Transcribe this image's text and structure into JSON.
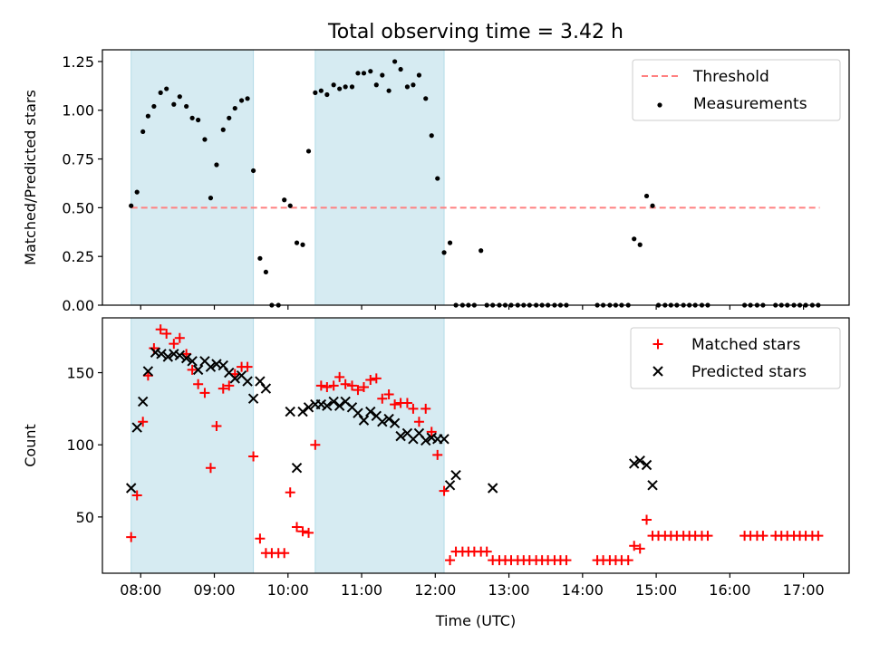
{
  "figure": {
    "title": "Total observing time = 3.42 h"
  },
  "chart_data": [
    {
      "type": "scatter",
      "panel": "top",
      "title": "Total observing time = 3.42 h",
      "xlabel": "",
      "ylabel": "Matched/Predicted stars",
      "xlim": [
        7.48,
        17.62
      ],
      "ylim": [
        0,
        1.31
      ],
      "x_ticks": [
        8,
        9,
        10,
        11,
        12,
        13,
        14,
        15,
        16,
        17
      ],
      "x_tick_labels": [],
      "y_ticks": [
        0.0,
        0.25,
        0.5,
        0.75,
        1.0,
        1.25
      ],
      "y_tick_labels": [
        "0.00",
        "0.25",
        "0.50",
        "0.75",
        "1.00",
        "1.25"
      ],
      "grid": false,
      "legend_position": "top-right",
      "shaded_spans": [
        [
          7.87,
          9.53
        ],
        [
          10.37,
          12.12
        ]
      ],
      "shade_color": "#add8e6",
      "series": [
        {
          "name": "Threshold",
          "style": "dashed-line",
          "color": "#ff8080",
          "x": [
            7.87,
            17.22
          ],
          "y": [
            0.5,
            0.5
          ]
        },
        {
          "name": "Measurements",
          "style": "dot",
          "color": "#000000",
          "x": [
            7.87,
            7.95,
            8.03,
            8.1,
            8.18,
            8.27,
            8.35,
            8.45,
            8.53,
            8.62,
            8.7,
            8.78,
            8.87,
            8.95,
            9.03,
            9.12,
            9.2,
            9.28,
            9.37,
            9.45,
            9.53,
            9.62,
            9.7,
            9.78,
            9.87,
            9.95,
            10.03,
            10.12,
            10.2,
            10.28,
            10.37,
            10.45,
            10.53,
            10.62,
            10.7,
            10.78,
            10.87,
            10.95,
            11.03,
            11.12,
            11.2,
            11.28,
            11.37,
            11.45,
            11.53,
            11.62,
            11.7,
            11.78,
            11.87,
            11.95,
            12.03,
            12.12,
            12.2,
            12.28,
            12.37,
            12.45,
            12.53,
            12.62,
            12.7,
            12.78,
            12.87,
            12.95,
            13.03,
            13.12,
            13.2,
            13.28,
            13.37,
            13.45,
            13.53,
            13.62,
            13.7,
            13.78,
            14.2,
            14.28,
            14.37,
            14.45,
            14.53,
            14.62,
            14.7,
            14.78,
            14.87,
            14.95,
            15.03,
            15.12,
            15.2,
            15.28,
            15.37,
            15.45,
            15.53,
            15.62,
            15.7,
            16.2,
            16.28,
            16.37,
            16.45,
            16.62,
            16.7,
            16.78,
            16.87,
            16.95,
            17.03,
            17.12,
            17.2
          ],
          "y": [
            0.51,
            0.58,
            0.89,
            0.97,
            1.02,
            1.09,
            1.11,
            1.03,
            1.07,
            1.02,
            0.96,
            0.95,
            0.85,
            0.55,
            0.72,
            0.9,
            0.96,
            1.01,
            1.05,
            1.06,
            0.69,
            0.24,
            0.17,
            0.0,
            0.0,
            0.54,
            0.51,
            0.32,
            0.31,
            0.79,
            1.09,
            1.1,
            1.08,
            1.13,
            1.11,
            1.12,
            1.12,
            1.19,
            1.19,
            1.2,
            1.13,
            1.18,
            1.1,
            1.25,
            1.21,
            1.12,
            1.13,
            1.18,
            1.06,
            0.87,
            0.65,
            0.27,
            0.32,
            0.0,
            0.0,
            0.0,
            0.0,
            0.28,
            0.0,
            0.0,
            0.0,
            0.0,
            0.0,
            0.0,
            0.0,
            0.0,
            0.0,
            0.0,
            0.0,
            0.0,
            0.0,
            0.0,
            0.0,
            0.0,
            0.0,
            0.0,
            0.0,
            0.0,
            0.34,
            0.31,
            0.56,
            0.51,
            0.0,
            0.0,
            0.0,
            0.0,
            0.0,
            0.0,
            0.0,
            0.0,
            0.0,
            0.0,
            0.0,
            0.0,
            0.0,
            0.0,
            0.0,
            0.0,
            0.0,
            0.0,
            0.0,
            0.0,
            0.0
          ]
        }
      ]
    },
    {
      "type": "scatter",
      "panel": "bottom",
      "xlabel": "Time (UTC)",
      "ylabel": "Count",
      "xlim": [
        7.48,
        17.62
      ],
      "ylim": [
        11,
        188
      ],
      "x_ticks": [
        8,
        9,
        10,
        11,
        12,
        13,
        14,
        15,
        16,
        17
      ],
      "x_tick_labels": [
        "08:00",
        "09:00",
        "10:00",
        "11:00",
        "12:00",
        "13:00",
        "14:00",
        "15:00",
        "16:00",
        "17:00"
      ],
      "y_ticks": [
        50,
        100,
        150
      ],
      "y_tick_labels": [
        "50",
        "100",
        "150"
      ],
      "grid": false,
      "legend_position": "top-right",
      "shaded_spans": [
        [
          7.87,
          9.53
        ],
        [
          10.37,
          12.12
        ]
      ],
      "shade_color": "#add8e6",
      "series": [
        {
          "name": "Matched stars",
          "style": "plus",
          "color": "#ff0000",
          "x": [
            7.87,
            7.95,
            8.03,
            8.1,
            8.18,
            8.27,
            8.35,
            8.45,
            8.53,
            8.62,
            8.7,
            8.78,
            8.87,
            8.95,
            9.03,
            9.12,
            9.2,
            9.28,
            9.37,
            9.45,
            9.53,
            9.62,
            9.7,
            9.78,
            9.87,
            9.95,
            10.03,
            10.12,
            10.2,
            10.28,
            10.37,
            10.45,
            10.53,
            10.62,
            10.7,
            10.78,
            10.87,
            10.95,
            11.03,
            11.12,
            11.2,
            11.28,
            11.37,
            11.45,
            11.53,
            11.62,
            11.7,
            11.78,
            11.87,
            11.95,
            12.03,
            12.12,
            12.2,
            12.28,
            12.37,
            12.45,
            12.53,
            12.62,
            12.7,
            12.78,
            12.87,
            12.95,
            13.03,
            13.12,
            13.2,
            13.28,
            13.37,
            13.45,
            13.53,
            13.62,
            13.7,
            13.78,
            14.2,
            14.28,
            14.37,
            14.45,
            14.53,
            14.62,
            14.7,
            14.78,
            14.87,
            14.95,
            15.03,
            15.12,
            15.2,
            15.28,
            15.37,
            15.45,
            15.53,
            15.62,
            15.7,
            16.2,
            16.28,
            16.37,
            16.45,
            16.62,
            16.7,
            16.78,
            16.87,
            16.95,
            17.03,
            17.12,
            17.2
          ],
          "y": [
            36,
            65,
            116,
            148,
            167,
            180,
            177,
            170,
            174,
            163,
            152,
            142,
            136,
            84,
            113,
            139,
            141,
            149,
            154,
            154,
            92,
            35,
            25,
            25,
            25,
            25,
            67,
            43,
            40,
            39,
            100,
            141,
            140,
            141,
            147,
            142,
            141,
            138,
            140,
            145,
            146,
            132,
            135,
            128,
            129,
            129,
            125,
            116,
            125,
            109,
            93,
            68,
            20,
            26,
            26,
            26,
            26,
            26,
            26,
            20,
            20,
            20,
            20,
            20,
            20,
            20,
            20,
            20,
            20,
            20,
            20,
            20,
            20,
            20,
            20,
            20,
            20,
            20,
            30,
            28,
            48,
            37,
            37,
            37,
            37,
            37,
            37,
            37,
            37,
            37,
            37,
            37,
            37,
            37,
            37,
            37,
            37,
            37,
            37,
            37,
            37,
            37,
            37
          ]
        },
        {
          "name": "Predicted stars",
          "style": "x",
          "color": "#000000",
          "x": [
            7.87,
            7.95,
            8.03,
            8.1,
            8.2,
            8.28,
            8.37,
            8.45,
            8.53,
            8.62,
            8.7,
            8.78,
            8.87,
            8.95,
            9.03,
            9.12,
            9.2,
            9.28,
            9.37,
            9.45,
            9.53,
            9.62,
            9.7,
            10.03,
            10.12,
            10.2,
            10.28,
            10.37,
            10.45,
            10.53,
            10.62,
            10.7,
            10.78,
            10.87,
            10.95,
            11.03,
            11.12,
            11.2,
            11.28,
            11.37,
            11.45,
            11.53,
            11.62,
            11.7,
            11.78,
            11.87,
            11.95,
            12.03,
            12.12,
            12.2,
            12.28,
            12.78,
            14.7,
            14.78,
            14.87,
            14.95
          ],
          "y": [
            70,
            112,
            130,
            151,
            164,
            163,
            161,
            163,
            162,
            160,
            158,
            152,
            158,
            154,
            156,
            155,
            150,
            146,
            148,
            144,
            132,
            144,
            139,
            123,
            84,
            123,
            126,
            128,
            128,
            127,
            130,
            127,
            130,
            126,
            122,
            117,
            123,
            120,
            116,
            118,
            115,
            106,
            108,
            104,
            108,
            103,
            105,
            104,
            104,
            72,
            79,
            70,
            87,
            89,
            86,
            72
          ]
        }
      ]
    }
  ]
}
